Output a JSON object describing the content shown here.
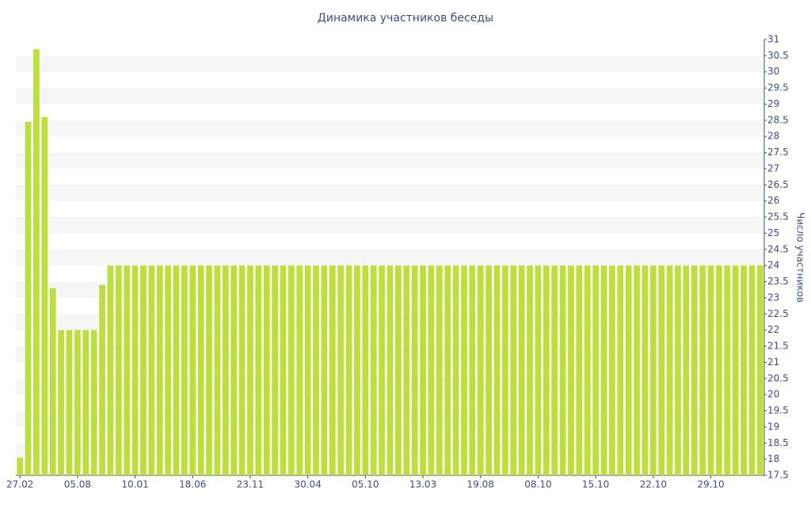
{
  "chart_data": {
    "type": "bar",
    "title": "Динамика участников беседы",
    "y_label": "Число участников",
    "categories": [
      "27.02",
      null,
      null,
      null,
      null,
      null,
      null,
      "05.08",
      null,
      null,
      null,
      null,
      null,
      null,
      "10.01",
      null,
      null,
      null,
      null,
      null,
      null,
      "18.06",
      null,
      null,
      null,
      null,
      null,
      null,
      "23.11",
      null,
      null,
      null,
      null,
      null,
      null,
      "30.04",
      null,
      null,
      null,
      null,
      null,
      null,
      "05.10",
      null,
      null,
      null,
      null,
      null,
      null,
      "13.03",
      null,
      null,
      null,
      null,
      null,
      null,
      "19.08",
      null,
      null,
      null,
      null,
      null,
      null,
      "08.10",
      null,
      null,
      null,
      null,
      null,
      null,
      "15.10",
      null,
      null,
      null,
      null,
      null,
      null,
      "22.10",
      null,
      null,
      null,
      null,
      null,
      null,
      "29.10",
      null,
      null,
      null,
      null,
      null,
      null
    ],
    "values": [
      18.05,
      28.45,
      30.7,
      28.6,
      23.3,
      22,
      22,
      22,
      22,
      22,
      23.4,
      24,
      24,
      24,
      24,
      24,
      24,
      24,
      24,
      24,
      24,
      24,
      24,
      24,
      24,
      24,
      24,
      24,
      24,
      24,
      24,
      24,
      24,
      24,
      24,
      24,
      24,
      24,
      24,
      24,
      24,
      24,
      24,
      24,
      24,
      24,
      24,
      24,
      24,
      24,
      24,
      24,
      24,
      24,
      24,
      24,
      24,
      24,
      24,
      24,
      24,
      24,
      24,
      24,
      24,
      24,
      24,
      24,
      24,
      24,
      24,
      24,
      24,
      24,
      24,
      24,
      24,
      24,
      24,
      24,
      24,
      24,
      24,
      24,
      24,
      24,
      24,
      24,
      24,
      24,
      24
    ],
    "color": "#bddf3a",
    "ylim": [
      17.5,
      31
    ],
    "yticks": [
      17.5,
      18,
      18.5,
      19,
      19.5,
      20,
      20.5,
      21,
      21.5,
      22,
      22.5,
      23,
      23.5,
      24,
      24.5,
      25,
      25.5,
      26,
      26.5,
      27,
      27.5,
      28,
      28.5,
      29,
      29.5,
      30,
      30.5,
      31
    ],
    "grid": true
  }
}
